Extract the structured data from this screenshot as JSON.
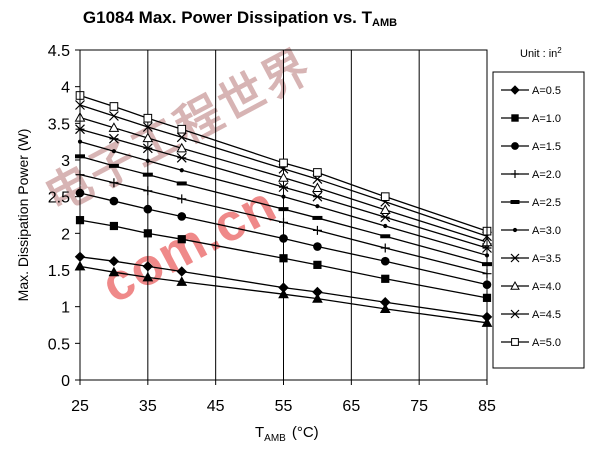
{
  "chart_data": {
    "type": "line",
    "title_main": "G1084 Max. Power Dissipation  vs. T",
    "title_sub": "AMB",
    "unit_label_main": "Unit : in",
    "unit_label_sup": "2",
    "ylabel": "Max. Dissipation Power (W)",
    "xlabel_main": "T",
    "xlabel_sub": "AMB",
    "xlabel_unit": "(°C)",
    "xlim": [
      25,
      85
    ],
    "ylim": [
      0,
      4.5
    ],
    "xticks": [
      25,
      35,
      45,
      55,
      65,
      75,
      85
    ],
    "yticks": [
      0,
      0.5,
      1,
      1.5,
      2,
      2.5,
      3,
      3.5,
      4,
      4.5
    ],
    "xtick_labels": [
      "25",
      "35",
      "45",
      "55",
      "65",
      "75",
      "85"
    ],
    "ytick_labels": [
      "0",
      "0.5",
      "1",
      "1.5",
      "2",
      "2.5",
      "3",
      "3.5",
      "4",
      "4.5"
    ],
    "grid": "vertical",
    "legend_position": "right",
    "x": [
      25,
      30,
      35,
      40,
      55,
      60,
      70,
      85
    ],
    "series": [
      {
        "name": "A=0.5",
        "marker": "diamond",
        "values": [
          1.68,
          1.62,
          1.55,
          1.48,
          1.26,
          1.2,
          1.06,
          0.86
        ]
      },
      {
        "name": "A=1.0",
        "marker": "square",
        "values": [
          2.18,
          2.1,
          2.0,
          1.92,
          1.66,
          1.57,
          1.38,
          1.12
        ]
      },
      {
        "name": "A=1.5",
        "marker": "circle",
        "values": [
          2.55,
          2.44,
          2.33,
          2.23,
          1.93,
          1.82,
          1.62,
          1.3
        ]
      },
      {
        "name": "A=2.0",
        "marker": "plus",
        "values": [
          2.8,
          2.69,
          2.58,
          2.47,
          2.15,
          2.04,
          1.8,
          1.45
        ]
      },
      {
        "name": "A=2.5",
        "marker": "bar",
        "values": [
          3.05,
          2.92,
          2.8,
          2.68,
          2.33,
          2.21,
          1.96,
          1.58
        ]
      },
      {
        "name": "A=3.0",
        "marker": "dot",
        "values": [
          3.25,
          3.12,
          2.99,
          2.86,
          2.5,
          2.37,
          2.1,
          1.7
        ]
      },
      {
        "name": "A=3.5",
        "marker": "asterisk",
        "values": [
          3.42,
          3.29,
          3.16,
          3.03,
          2.63,
          2.5,
          2.22,
          1.8
        ]
      },
      {
        "name": "A=4.0",
        "marker": "triangle-open",
        "values": [
          3.58,
          3.44,
          3.3,
          3.16,
          2.76,
          2.62,
          2.32,
          1.88
        ]
      },
      {
        "name": "A=4.5",
        "marker": "x",
        "values": [
          3.75,
          3.6,
          3.45,
          3.31,
          2.88,
          2.74,
          2.43,
          1.96
        ]
      },
      {
        "name": "A=5.0",
        "marker": "square-open",
        "values": [
          3.88,
          3.73,
          3.57,
          3.42,
          2.96,
          2.83,
          2.5,
          2.03
        ]
      },
      {
        "name": "",
        "marker": "triangle",
        "values": [
          1.55,
          1.47,
          1.4,
          1.34,
          1.17,
          1.11,
          0.97,
          0.78
        ]
      }
    ]
  },
  "watermark": {
    "line1": "com.cn",
    "line2": "电子工程世界"
  }
}
